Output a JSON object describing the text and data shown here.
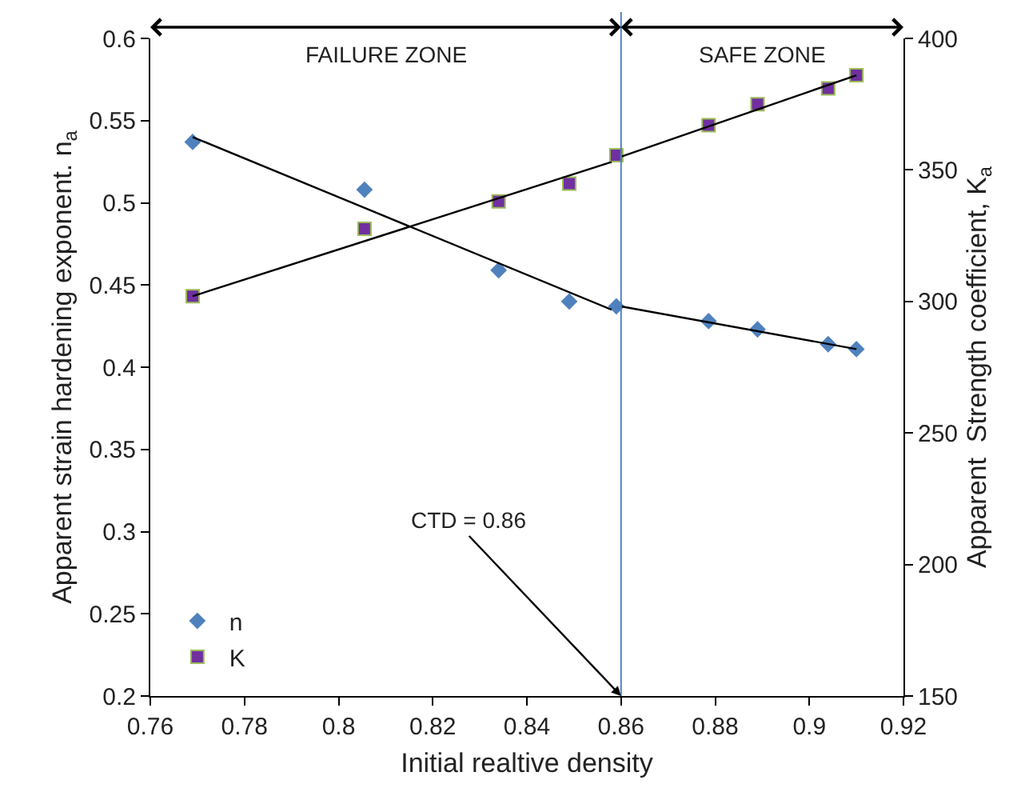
{
  "chart_data": {
    "type": "scatter",
    "xlabel": "Initial realtive density",
    "ylabel": "Apparent strain hardening exponent. n$_{a}$",
    "y2label": "Apparent  Strength coefficient, K$_{a}$",
    "xlim": [
      0.76,
      0.92
    ],
    "xticks": [
      0.76,
      0.78,
      0.8,
      0.82,
      0.84,
      0.86,
      0.88,
      0.9,
      0.92
    ],
    "ylim": [
      0.2,
      0.6
    ],
    "yticks": [
      0.2,
      0.25,
      0.3,
      0.35,
      0.4,
      0.45,
      0.5,
      0.55,
      0.6
    ],
    "y2lim": [
      150,
      400
    ],
    "y2ticks": [
      150,
      200,
      250,
      300,
      350,
      400
    ],
    "legend": "bottom left",
    "series": [
      {
        "name": "n",
        "marker": "diamond",
        "color": "#4f81bd",
        "x": [
          0.769,
          0.8055,
          0.834,
          0.849,
          0.859,
          0.8786,
          0.889,
          0.904,
          0.91
        ],
        "values": [
          0.537,
          0.508,
          0.459,
          0.44,
          0.437,
          0.428,
          0.423,
          0.414,
          0.411
        ]
      },
      {
        "name": "K",
        "marker": "square",
        "axis": "y2",
        "color": "#7030a0",
        "x": [
          0.769,
          0.8055,
          0.834,
          0.849,
          0.859,
          0.8786,
          0.889,
          0.904,
          0.91
        ],
        "values": [
          302,
          327.6,
          338,
          344.8,
          355.6,
          367,
          375,
          381,
          386
        ]
      },
      {
        "type": "line",
        "color": "#000000",
        "x": [
          0.769,
          0.858
        ],
        "values": [
          0.54,
          0.435
        ]
      },
      {
        "type": "line",
        "color": "#000000",
        "x": [
          0.86,
          0.91
        ],
        "values": [
          0.437,
          0.411
        ]
      },
      {
        "type": "line",
        "axis": "y2",
        "color": "#000000",
        "x": [
          0.769,
          0.858
        ],
        "values": [
          302,
          353
        ]
      },
      {
        "type": "line",
        "axis": "y2",
        "color": "#000000",
        "x": [
          0.86,
          0.91
        ],
        "values": [
          355,
          386
        ]
      }
    ],
    "ref_lines": [
      {
        "axis": "x",
        "value": 0.86,
        "color": "#4f81bd"
      }
    ],
    "annotations": [
      "FAILURE ZONE",
      "SAFE ZONE",
      {
        "text": "CTD = 0.86",
        "x": 0.86,
        "y": 0.2
      }
    ]
  }
}
